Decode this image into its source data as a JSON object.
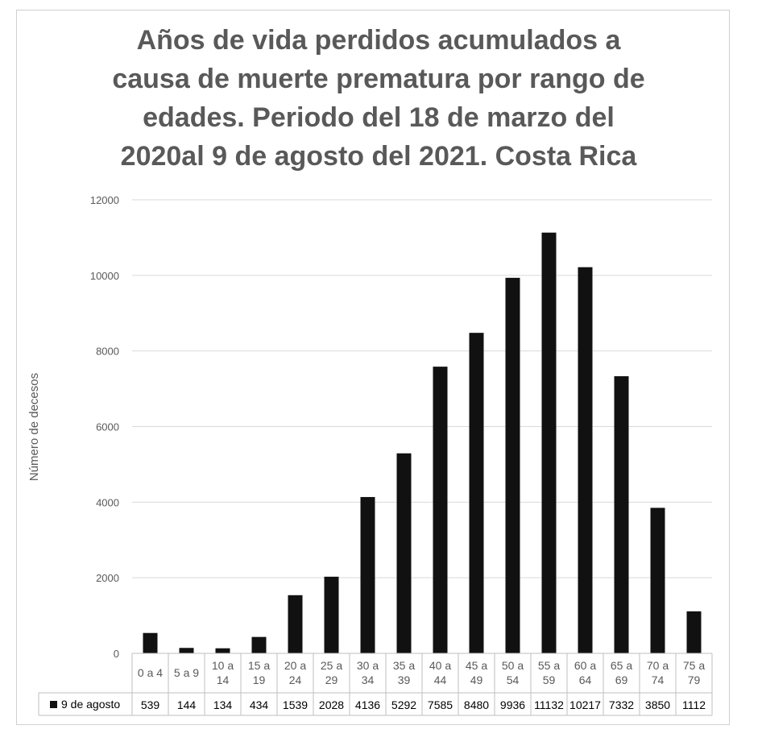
{
  "chart_data": {
    "type": "bar",
    "title_lines": [
      "Años de vida perdidos acumulados a",
      "causa de muerte prematura por rango de",
      "edades. Periodo del 18 de marzo del",
      "2020al 9 de agosto del 2021. Costa Rica"
    ],
    "ylabel": "Número de decesos",
    "ylim": [
      0,
      12000
    ],
    "yticks": [
      0,
      2000,
      4000,
      6000,
      8000,
      10000,
      12000
    ],
    "grid": true,
    "categories": [
      [
        "0 a 4"
      ],
      [
        "5 a 9"
      ],
      [
        "10 a",
        "14"
      ],
      [
        "15 a",
        "19"
      ],
      [
        "20 a",
        "24"
      ],
      [
        "25 a",
        "29"
      ],
      [
        "30 a",
        "34"
      ],
      [
        "35 a",
        "39"
      ],
      [
        "40 a",
        "44"
      ],
      [
        "45 a",
        "49"
      ],
      [
        "50 a",
        "54"
      ],
      [
        "55 a",
        "59"
      ],
      [
        "60 a",
        "64"
      ],
      [
        "65 a",
        "69"
      ],
      [
        "70 a",
        "74"
      ],
      [
        "75 a",
        "79"
      ]
    ],
    "series": [
      {
        "name": "9 de agosto",
        "color": "#111111",
        "values": [
          539,
          144,
          134,
          434,
          1539,
          2028,
          4136,
          5292,
          7585,
          8480,
          9936,
          11132,
          10217,
          7332,
          3850,
          1112
        ]
      }
    ],
    "data_table": true
  }
}
